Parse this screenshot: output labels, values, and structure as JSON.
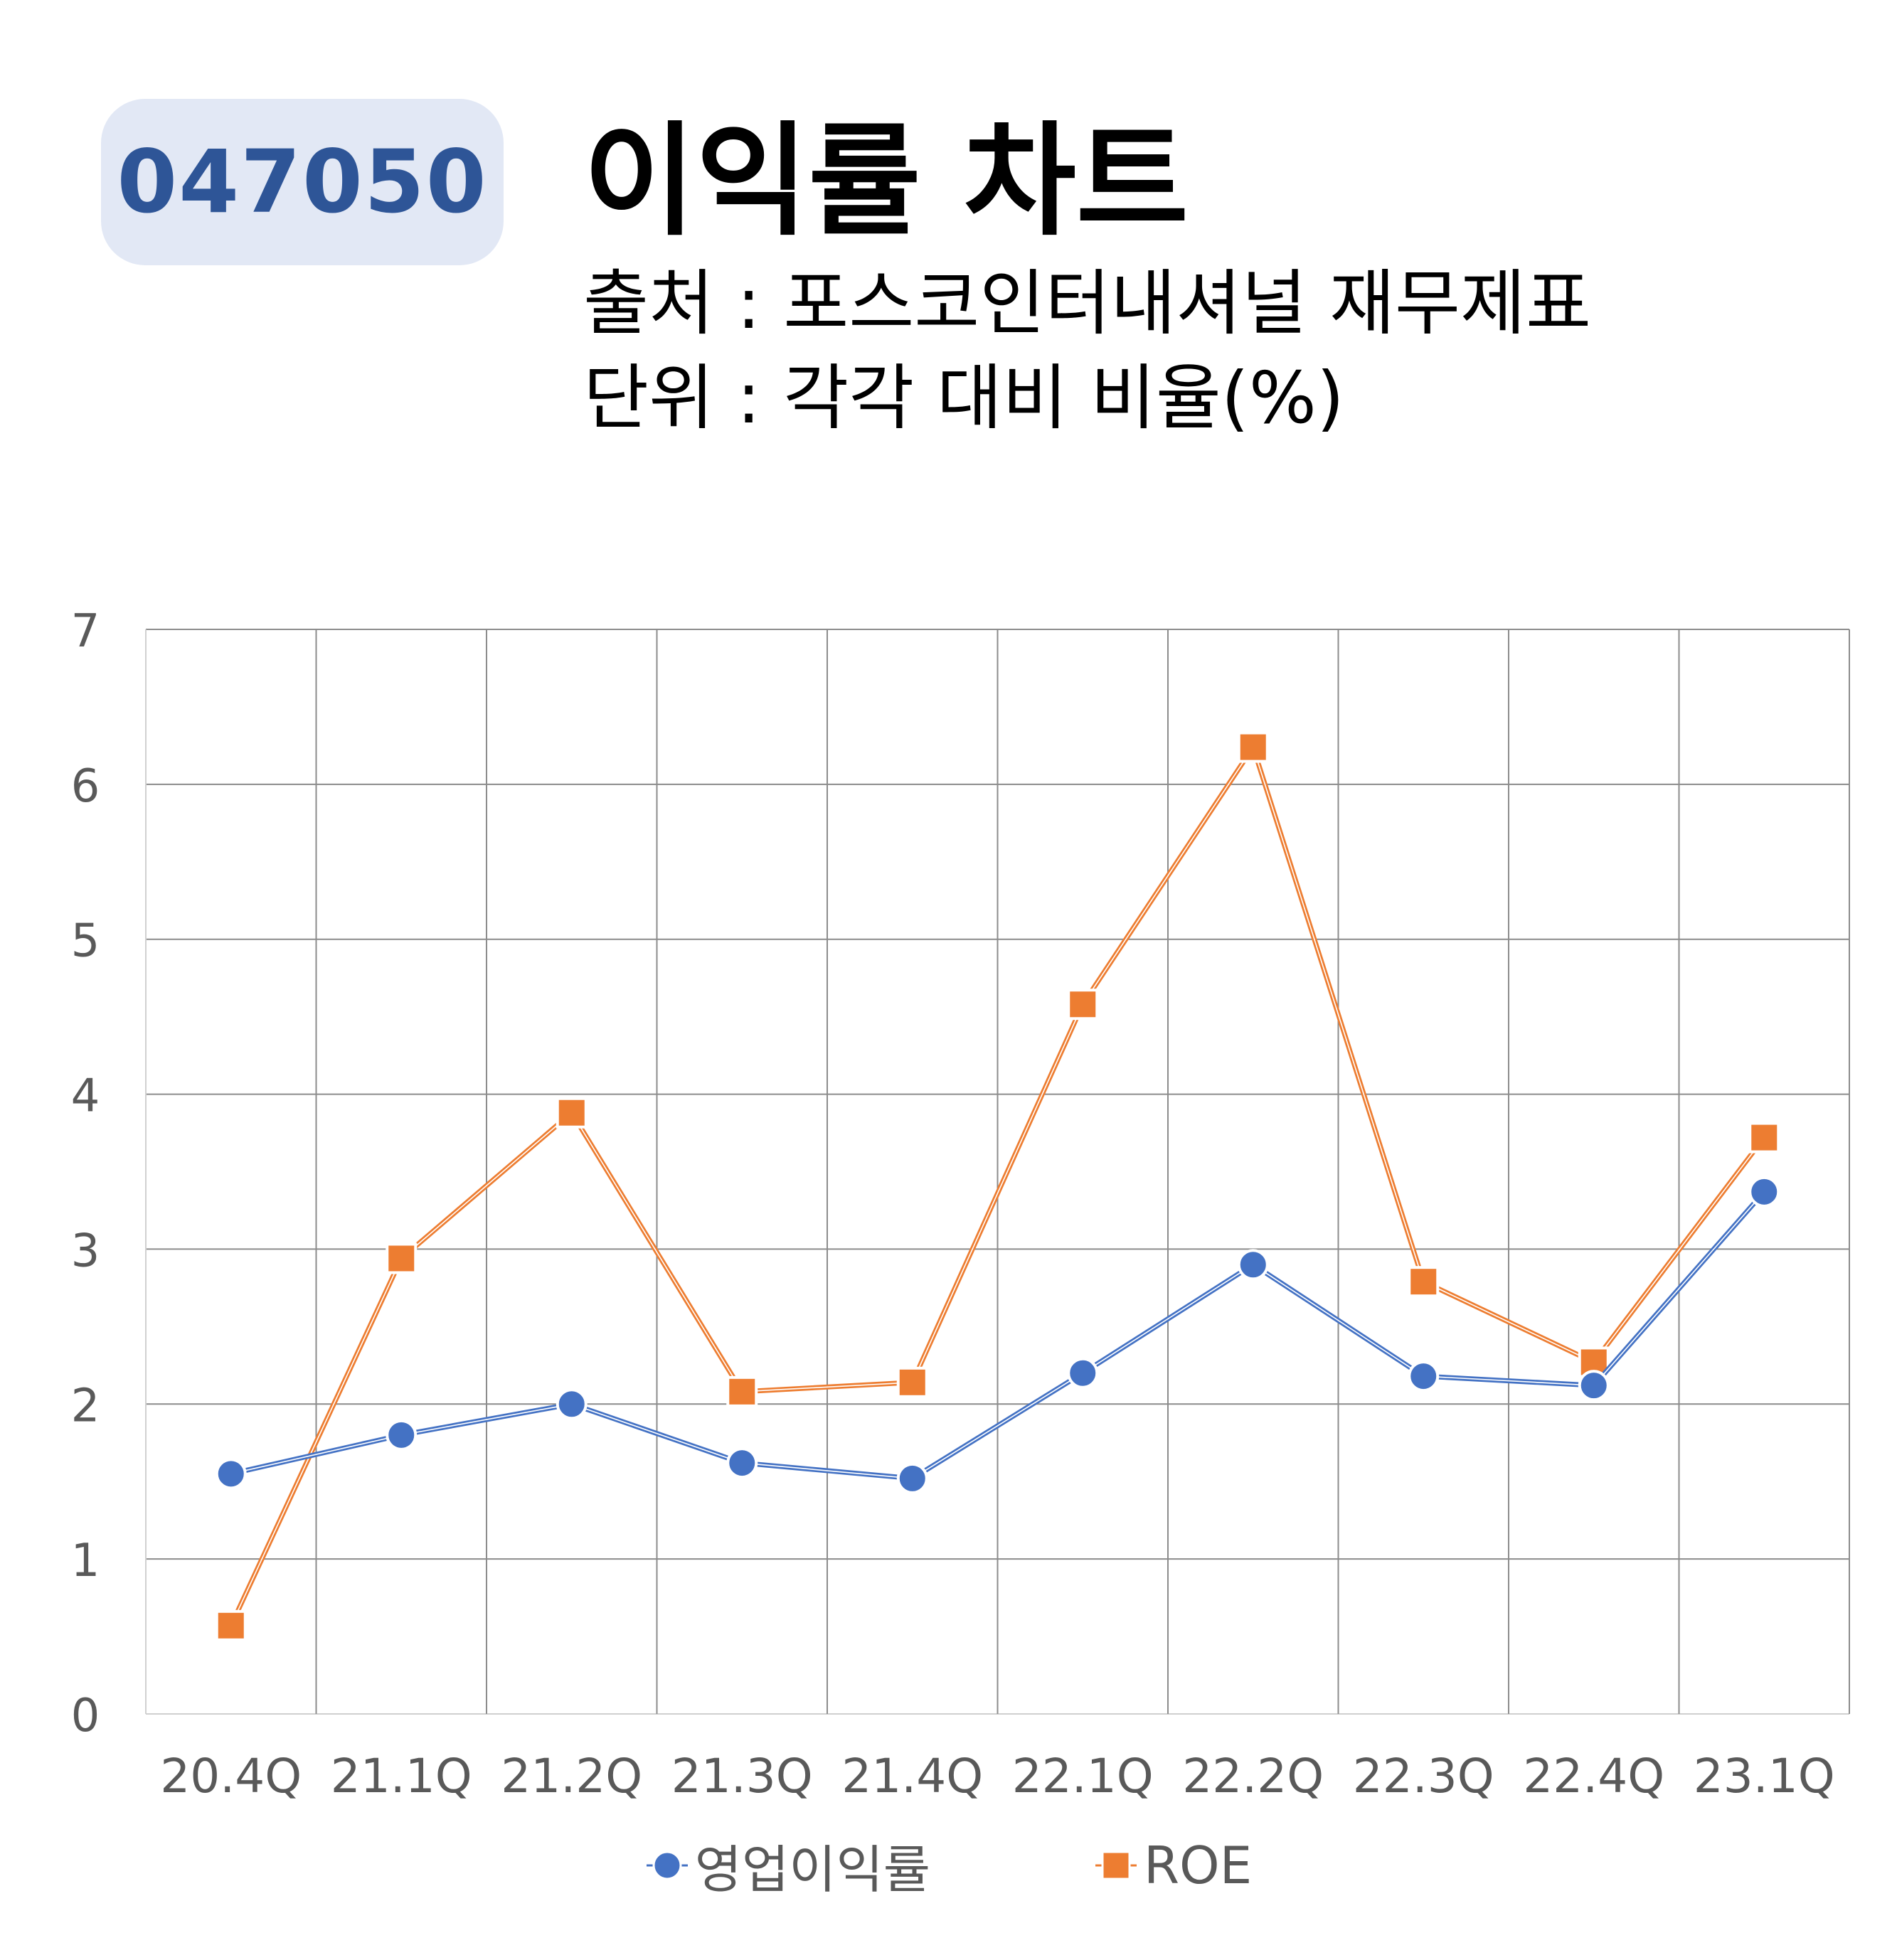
{
  "header": {
    "code": "047050",
    "title": "이익률 차트",
    "source": "출처 : 포스코인터내셔널 재무제표",
    "unit": "단위 : 각각 대비 비율(%)"
  },
  "colors": {
    "badge_bg": "#e2e8f5",
    "badge_text": "#2e5597",
    "series_blue": "#4472c4",
    "series_orange": "#ed7d31",
    "grid": "#8c8c8c",
    "tick_text": "#595959"
  },
  "chart_data": {
    "type": "line",
    "categories": [
      "20.4Q",
      "21.1Q",
      "21.2Q",
      "21.3Q",
      "21.4Q",
      "22.1Q",
      "22.2Q",
      "22.3Q",
      "22.4Q",
      "23.1Q"
    ],
    "series": [
      {
        "name": "영업이익률",
        "marker": "circle",
        "color": "#4472c4",
        "values": [
          1.55,
          1.8,
          2.0,
          1.62,
          1.52,
          2.2,
          2.9,
          2.18,
          2.12,
          3.37
        ]
      },
      {
        "name": "ROE",
        "marker": "square",
        "color": "#ed7d31",
        "values": [
          0.57,
          2.94,
          3.88,
          2.08,
          2.14,
          4.58,
          6.24,
          2.79,
          2.27,
          3.72
        ]
      }
    ],
    "yticks": [
      "0",
      "1",
      "2",
      "3",
      "4",
      "5",
      "6",
      "7"
    ],
    "ylim": [
      0,
      7
    ],
    "grid": true,
    "legend_position": "bottom"
  }
}
